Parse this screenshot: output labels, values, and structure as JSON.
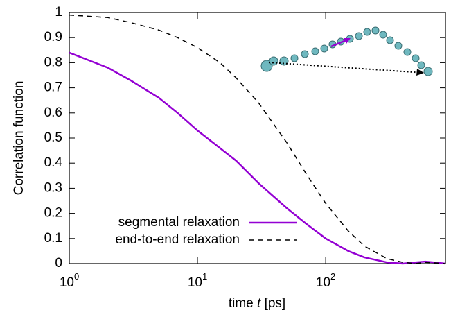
{
  "chart_data": {
    "type": "line",
    "xlabel": {
      "text": "time",
      "var": "t",
      "unit": "[ps]"
    },
    "ylabel": "Correlation function",
    "xscale": "log",
    "xlim": [
      1,
      860
    ],
    "ylim": [
      0,
      1
    ],
    "xticks": [
      {
        "value": 1,
        "label": "10",
        "exponent": "0"
      },
      {
        "value": 10,
        "label": "10",
        "exponent": "1"
      },
      {
        "value": 100,
        "label": "10",
        "exponent": "2"
      }
    ],
    "yticks": [
      0,
      0.1,
      0.2,
      0.3,
      0.4,
      0.5,
      0.6,
      0.7,
      0.8,
      0.9,
      1
    ],
    "grid": false,
    "legend": "bottom-left",
    "x": [
      1,
      2,
      3,
      5,
      7,
      10,
      15,
      20,
      30,
      50,
      70,
      100,
      150,
      200,
      300,
      400,
      500,
      600,
      700,
      860
    ],
    "series": [
      {
        "name": "segmental relaxation",
        "color": "#9400d3",
        "dash": false,
        "values": [
          0.84,
          0.78,
          0.73,
          0.66,
          0.6,
          0.53,
          0.46,
          0.41,
          0.32,
          0.22,
          0.16,
          0.1,
          0.05,
          0.025,
          0.005,
          0.0,
          0.005,
          0.008,
          0.005,
          0.0
        ]
      },
      {
        "name": "end-to-end relaxation",
        "color": "#000000",
        "dash": true,
        "values": [
          0.99,
          0.98,
          0.96,
          0.93,
          0.9,
          0.86,
          0.8,
          0.74,
          0.64,
          0.48,
          0.36,
          0.24,
          0.13,
          0.07,
          0.02,
          0.005,
          0.0,
          0.005,
          0.003,
          0.0
        ]
      }
    ]
  }
}
